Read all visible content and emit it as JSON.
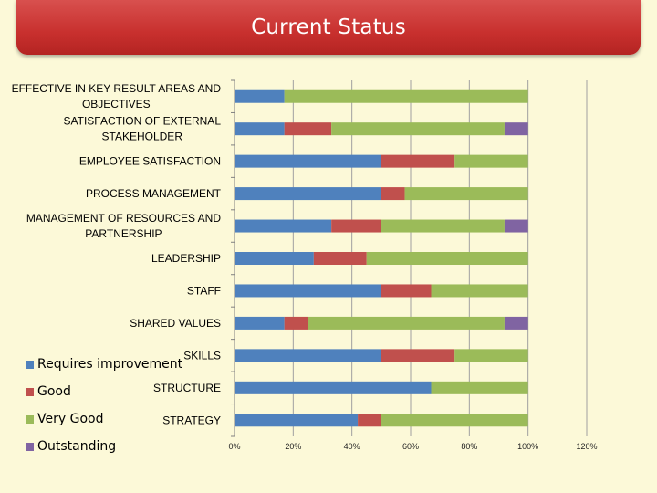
{
  "title": "Current Status",
  "chart_data": {
    "type": "bar",
    "orientation": "horizontal",
    "stacked": true,
    "categories": [
      "EFFECTIVE IN KEY RESULT AREAS AND OBJECTIVES",
      "SATISFACTION OF EXTERNAL STAKEHOLDER",
      "EMPLOYEE SATISFACTION",
      "PROCESS MANAGEMENT",
      "MANAGEMENT OF RESOURCES AND PARTNERSHIP",
      "LEADERSHIP",
      "STAFF",
      "SHARED VALUES",
      "SKILLS",
      "STRUCTURE",
      "STRATEGY"
    ],
    "category_lines": [
      [
        "EFFECTIVE IN KEY RESULT AREAS AND",
        "OBJECTIVES"
      ],
      [
        "SATISFACTION OF EXTERNAL",
        "STAKEHOLDER"
      ],
      [
        "EMPLOYEE SATISFACTION"
      ],
      [
        "PROCESS MANAGEMENT"
      ],
      [
        "MANAGEMENT OF RESOURCES AND",
        "PARTNERSHIP"
      ],
      [
        "LEADERSHIP"
      ],
      [
        "STAFF"
      ],
      [
        "SHARED VALUES"
      ],
      [
        "SKILLS"
      ],
      [
        "STRUCTURE"
      ],
      [
        "STRATEGY"
      ]
    ],
    "series": [
      {
        "name": "Requires improvement",
        "color": "#4f81bd",
        "values": [
          17,
          17,
          50,
          50,
          33,
          27,
          50,
          17,
          50,
          67,
          42
        ]
      },
      {
        "name": "Good",
        "color": "#c0504d",
        "values": [
          0,
          16,
          25,
          8,
          17,
          18,
          17,
          8,
          25,
          0,
          8
        ]
      },
      {
        "name": "Very Good",
        "color": "#9bbb59",
        "values": [
          83,
          59,
          25,
          42,
          42,
          55,
          33,
          67,
          25,
          33,
          50
        ]
      },
      {
        "name": "Outstanding",
        "color": "#8064a2",
        "values": [
          0,
          8,
          0,
          0,
          8,
          0,
          0,
          8,
          0,
          0,
          0
        ]
      }
    ],
    "xlim": [
      0,
      120
    ],
    "xticks": [
      "0%",
      "20%",
      "40%",
      "60%",
      "80%",
      "100%",
      "120%"
    ],
    "xtick_values": [
      0,
      20,
      40,
      60,
      80,
      100,
      120
    ],
    "grid": true,
    "legend_position": "bottom-left"
  }
}
